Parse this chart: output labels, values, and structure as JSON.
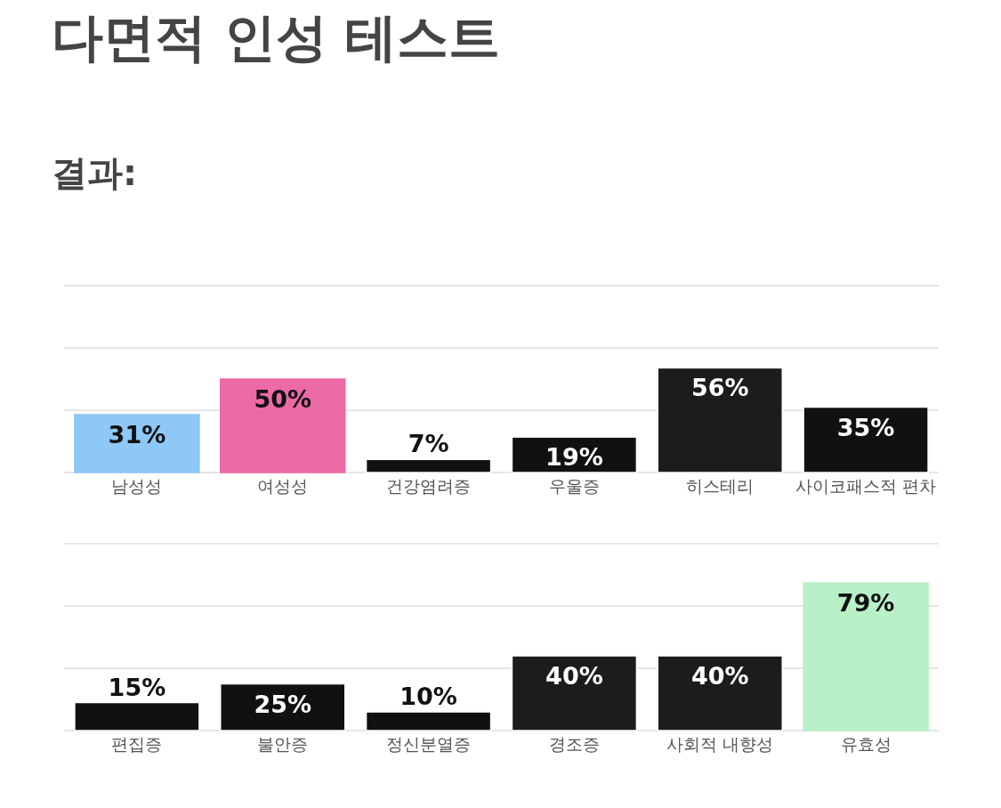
{
  "chart_data": [
    {
      "type": "bar",
      "title": "다면적 인성 테스트",
      "subtitle": "결과:",
      "categories": [
        "남성성",
        "여성성",
        "건강염려증",
        "우울증",
        "히스테리",
        "사이코패스적 편차"
      ],
      "values": [
        31,
        50,
        7,
        19,
        56,
        35
      ],
      "value_labels": [
        "31%",
        "50%",
        "7%",
        "19%",
        "56%",
        "35%"
      ],
      "colors": [
        "#8ec8f6",
        "#ec6aa6",
        "#111111",
        "#111111",
        "#1c1c1c",
        "#111111"
      ],
      "ref_lines": [
        {
          "axis": "y",
          "value": 33.3,
          "color": "#e6e6e6"
        },
        {
          "axis": "y",
          "value": 66.7,
          "color": "#e6e6e6"
        },
        {
          "axis": "y",
          "value": 100,
          "color": "#e6e6e6"
        }
      ],
      "tick_labels": "x"
    },
    {
      "type": "bar",
      "categories": [
        "편집증",
        "불안증",
        "정신분열증",
        "경조증",
        "사회적 내향성",
        "유효성"
      ],
      "values": [
        15,
        25,
        10,
        40,
        40,
        79
      ],
      "value_labels": [
        "15%",
        "25%",
        "10%",
        "40%",
        "40%",
        "79%"
      ],
      "colors": [
        "#111111",
        "#111111",
        "#111111",
        "#1c1c1c",
        "#1c1c1c",
        "#b8f0c8"
      ],
      "ref_lines": [
        {
          "axis": "y",
          "value": 33.3,
          "color": "#e6e6e6"
        },
        {
          "axis": "y",
          "value": 66.7,
          "color": "#e6e6e6"
        },
        {
          "axis": "y",
          "value": 100,
          "color": "#e6e6e6"
        }
      ],
      "tick_labels": "x"
    }
  ]
}
